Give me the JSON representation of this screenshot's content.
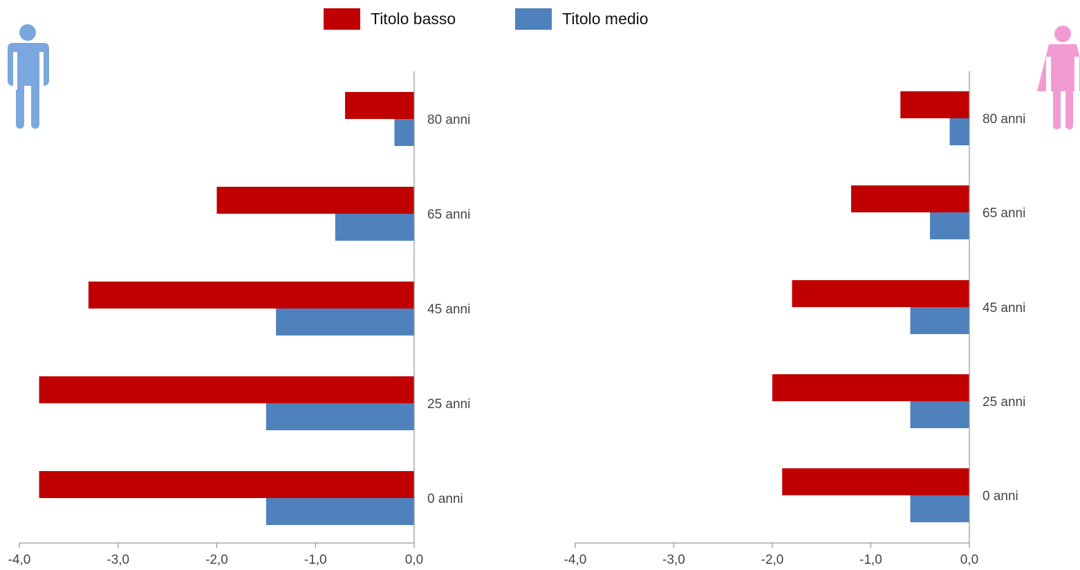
{
  "legend": [
    {
      "label": "Titolo basso",
      "color": "#C00000"
    },
    {
      "label": "Titolo medio",
      "color": "#4F81BD"
    }
  ],
  "icons": {
    "male": {
      "name": "male-person-icon",
      "color": "#7BA7DE"
    },
    "female": {
      "name": "female-person-icon",
      "color": "#F29BD2"
    }
  },
  "chart_data": [
    {
      "type": "bar",
      "orientation": "horizontal",
      "panel": "male",
      "categories": [
        "80 anni",
        "65 anni",
        "45 anni",
        "25 anni",
        "0 anni"
      ],
      "series": [
        {
          "name": "Titolo basso",
          "color": "#C00000",
          "values": [
            -0.7,
            -2.0,
            -3.3,
            -3.8,
            -3.8
          ]
        },
        {
          "name": "Titolo medio",
          "color": "#4F81BD",
          "values": [
            -0.2,
            -0.8,
            -1.4,
            -1.5,
            -1.5
          ]
        }
      ],
      "xlim": [
        -4.0,
        0.0
      ],
      "xticks": [
        "-4,0",
        "-3,0",
        "-2,0",
        "-1,0",
        "0,0"
      ],
      "grid": false
    },
    {
      "type": "bar",
      "orientation": "horizontal",
      "panel": "female",
      "categories": [
        "80 anni",
        "65 anni",
        "45 anni",
        "25 anni",
        "0 anni"
      ],
      "series": [
        {
          "name": "Titolo basso",
          "color": "#C00000",
          "values": [
            -0.7,
            -1.2,
            -1.8,
            -2.0,
            -1.9
          ]
        },
        {
          "name": "Titolo medio",
          "color": "#4F81BD",
          "values": [
            -0.2,
            -0.4,
            -0.6,
            -0.6,
            -0.6
          ]
        }
      ],
      "xlim": [
        -4.0,
        0.0
      ],
      "xticks": [
        "-4,0",
        "-3,0",
        "-2,0",
        "-1,0",
        "0,0"
      ],
      "grid": false
    }
  ]
}
